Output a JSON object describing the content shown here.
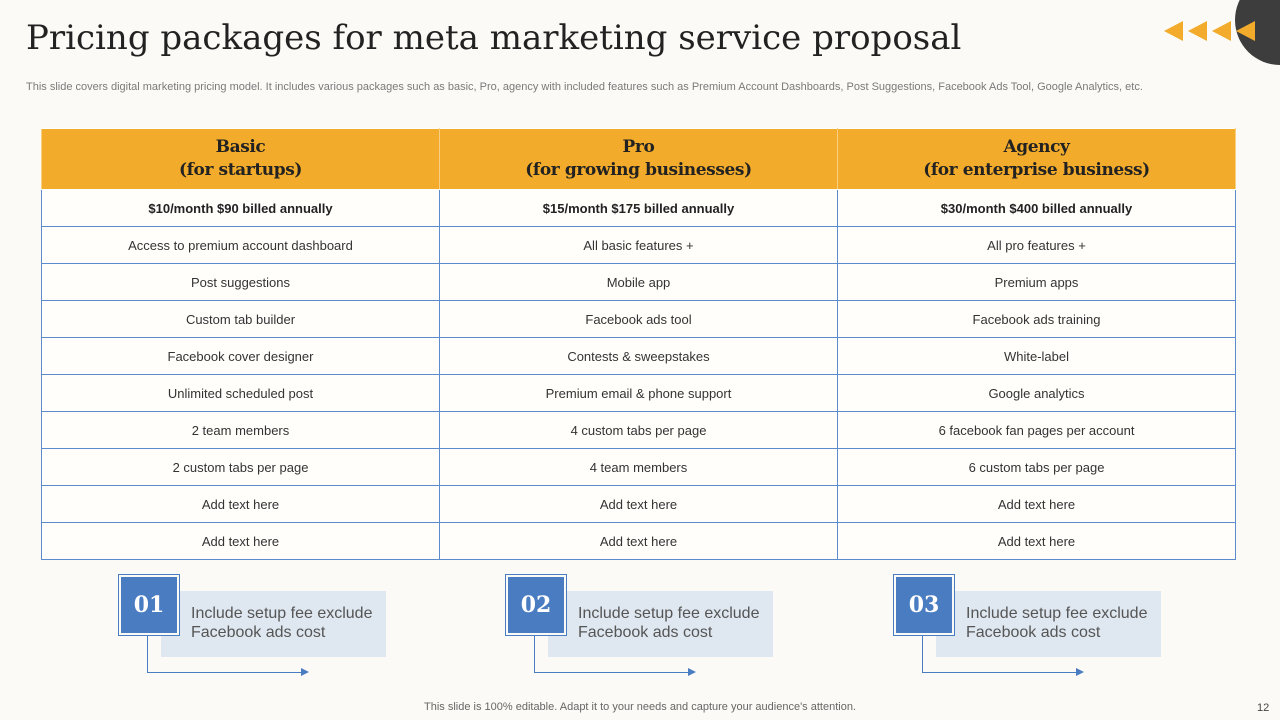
{
  "slide": {
    "title": "Pricing packages for meta marketing service proposal",
    "subtitle": "This slide covers digital marketing pricing model. It includes various packages such as basic, Pro, agency with included features such as Premium Account Dashboards, Post Suggestions, Facebook Ads Tool, Google Analytics,  etc.",
    "footer": "This slide is 100% editable. Adapt it to your needs and capture your audience's attention.",
    "page_number": "12"
  },
  "colors": {
    "accent": "#f2ab2a",
    "blue": "#4a7cc1",
    "light_blue": "#dfe7f0",
    "dark": "#3d3d3d"
  },
  "table": {
    "headers": [
      {
        "name": "Basic",
        "sub": "(for startups)"
      },
      {
        "name": "Pro",
        "sub": "(for growing businesses)"
      },
      {
        "name": "Agency",
        "sub": "(for enterprise business)"
      }
    ],
    "price_row": [
      "$10/month $90 billed annually",
      "$15/month $175 billed annually",
      "$30/month $400 billed annually"
    ],
    "rows": [
      [
        "Access to premium account dashboard",
        "All basic features  +",
        "All pro features  +"
      ],
      [
        "Post suggestions",
        "Mobile app",
        "Premium apps"
      ],
      [
        "Custom tab builder",
        "Facebook ads tool",
        "Facebook ads training"
      ],
      [
        "Facebook cover designer",
        "Contests & sweepstakes",
        "White-label"
      ],
      [
        "Unlimited scheduled post",
        "Premium email & phone support",
        "Google analytics"
      ],
      [
        "2 team members",
        "4 custom tabs per page",
        "6 facebook fan pages per account"
      ],
      [
        "2 custom tabs per page",
        "4 team members",
        "6 custom tabs per page"
      ],
      [
        "Add text here",
        "Add text here",
        "Add text here"
      ],
      [
        "Add text here",
        "Add text here",
        "Add text here"
      ]
    ]
  },
  "notes": [
    {
      "number": "01",
      "text": "Include  setup fee exclude Facebook ads cost"
    },
    {
      "number": "02",
      "text": "Include  setup fee exclude Facebook ads cost"
    },
    {
      "number": "03",
      "text": "Include  setup fee exclude Facebook ads cost"
    }
  ]
}
